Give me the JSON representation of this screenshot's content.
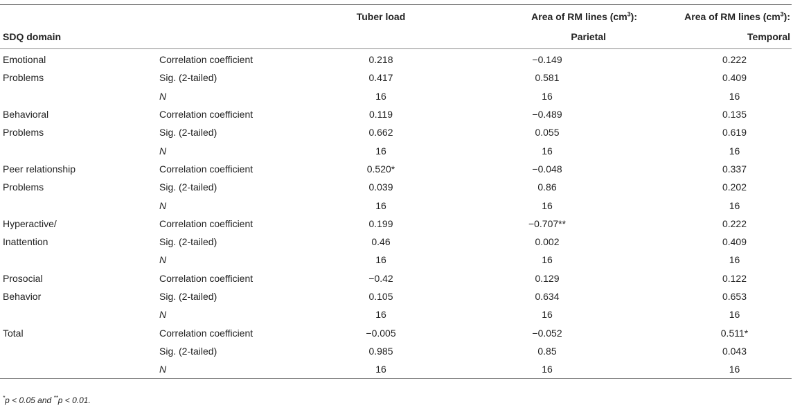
{
  "header": {
    "domain_label": "SDQ domain",
    "col_tuber": "Tuber load",
    "col_area_prefix": "Area of RM lines (cm",
    "col_area_sup": "3",
    "col_area_suffix": "):",
    "col_parietal_sub": "Parietal",
    "col_temporal_sub": "Temporal"
  },
  "rows": [
    {
      "domain": "Emotional",
      "stat": "Correlation coefficient",
      "stat_italic": false,
      "tuber": "0.218",
      "parietal": "−0.149",
      "temporal": "0.222"
    },
    {
      "domain": "Problems",
      "stat": "Sig. (2-tailed)",
      "stat_italic": false,
      "tuber": "0.417",
      "parietal": "0.581",
      "temporal": "0.409"
    },
    {
      "domain": "",
      "stat": "N",
      "stat_italic": true,
      "tuber": "16",
      "parietal": "16",
      "temporal": "16"
    },
    {
      "domain": "Behavioral",
      "stat": "Correlation coefficient",
      "stat_italic": false,
      "tuber": "0.119",
      "parietal": "−0.489",
      "temporal": "0.135"
    },
    {
      "domain": "Problems",
      "stat": "Sig. (2-tailed)",
      "stat_italic": false,
      "tuber": "0.662",
      "parietal": "0.055",
      "temporal": "0.619"
    },
    {
      "domain": "",
      "stat": "N",
      "stat_italic": true,
      "tuber": "16",
      "parietal": "16",
      "temporal": "16"
    },
    {
      "domain": "Peer relationship",
      "stat": "Correlation coefficient",
      "stat_italic": false,
      "tuber": "0.520*",
      "parietal": "−0.048",
      "temporal": "0.337"
    },
    {
      "domain": "Problems",
      "stat": "Sig. (2-tailed)",
      "stat_italic": false,
      "tuber": "0.039",
      "parietal": "0.86",
      "temporal": "0.202"
    },
    {
      "domain": "",
      "stat": "N",
      "stat_italic": true,
      "tuber": "16",
      "parietal": "16",
      "temporal": "16"
    },
    {
      "domain": "Hyperactive/",
      "stat": "Correlation coefficient",
      "stat_italic": false,
      "tuber": "0.199",
      "parietal": "−0.707**",
      "temporal": "0.222"
    },
    {
      "domain": "Inattention",
      "stat": "Sig. (2-tailed)",
      "stat_italic": false,
      "tuber": "0.46",
      "parietal": "0.002",
      "temporal": "0.409"
    },
    {
      "domain": "",
      "stat": "N",
      "stat_italic": true,
      "tuber": "16",
      "parietal": "16",
      "temporal": "16"
    },
    {
      "domain": "Prosocial",
      "stat": "Correlation coefficient",
      "stat_italic": false,
      "tuber": "−0.42",
      "parietal": "0.129",
      "temporal": "0.122"
    },
    {
      "domain": "Behavior",
      "stat": "Sig. (2-tailed)",
      "stat_italic": false,
      "tuber": "0.105",
      "parietal": "0.634",
      "temporal": "0.653"
    },
    {
      "domain": "",
      "stat": "N",
      "stat_italic": true,
      "tuber": "16",
      "parietal": "16",
      "temporal": "16"
    },
    {
      "domain": "Total",
      "stat": "Correlation coefficient",
      "stat_italic": false,
      "tuber": "−0.005",
      "parietal": "−0.052",
      "temporal": "0.511*"
    },
    {
      "domain": "",
      "stat": "Sig. (2-tailed)",
      "stat_italic": false,
      "tuber": "0.985",
      "parietal": "0.85",
      "temporal": "0.043"
    },
    {
      "domain": "",
      "stat": "N",
      "stat_italic": true,
      "tuber": "16",
      "parietal": "16",
      "temporal": "16"
    }
  ],
  "footnote": {
    "star1": "*",
    "text1": "p < 0.05 and ",
    "star2": "**",
    "text2": "p < 0.01."
  }
}
